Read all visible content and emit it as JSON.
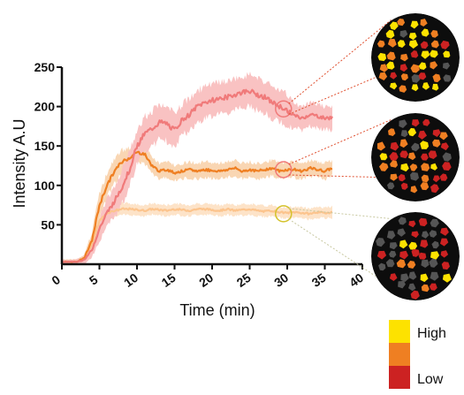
{
  "chart_data": {
    "type": "line",
    "xlabel": "Time (min)",
    "ylabel": "Intensity A.U",
    "xlim": [
      0,
      40
    ],
    "ylim": [
      0,
      250
    ],
    "x_ticks": [
      0,
      5,
      10,
      15,
      20,
      25,
      30,
      35,
      40
    ],
    "y_ticks": [
      50,
      100,
      150,
      200,
      250
    ],
    "series": [
      {
        "color": "#f07a7a",
        "band_color": "#f9c2c2",
        "x": [
          0,
          2,
          3,
          4,
          5,
          6,
          7,
          8,
          9,
          10,
          11,
          12,
          13,
          14,
          15,
          16,
          17,
          18,
          19,
          20,
          21,
          22,
          23,
          24,
          25,
          26,
          27,
          28,
          29,
          30,
          31,
          32,
          33,
          34,
          35,
          36
        ],
        "y": [
          3,
          3,
          6,
          18,
          45,
          65,
          80,
          98,
          120,
          150,
          165,
          172,
          180,
          178,
          170,
          183,
          190,
          200,
          205,
          208,
          210,
          212,
          215,
          218,
          220,
          215,
          212,
          205,
          200,
          195,
          188,
          185,
          190,
          188,
          185,
          186
        ],
        "band": [
          3,
          3,
          5,
          10,
          15,
          18,
          20,
          22,
          22,
          22,
          22,
          22,
          22,
          22,
          20,
          20,
          20,
          20,
          20,
          20,
          20,
          20,
          20,
          20,
          20,
          20,
          20,
          20,
          20,
          20,
          15,
          15,
          15,
          15,
          15,
          15
        ]
      },
      {
        "color": "#ef7f22",
        "band_color": "#f9d6b3",
        "x": [
          0,
          2,
          3,
          4,
          5,
          6,
          7,
          8,
          9,
          10,
          11,
          12,
          13,
          14,
          15,
          16,
          17,
          18,
          19,
          20,
          21,
          22,
          23,
          24,
          25,
          26,
          27,
          28,
          29,
          30,
          31,
          32,
          33,
          34,
          35,
          36
        ],
        "y": [
          3,
          3,
          8,
          30,
          75,
          100,
          118,
          130,
          135,
          142,
          140,
          125,
          118,
          120,
          116,
          118,
          120,
          118,
          120,
          119,
          118,
          120,
          122,
          118,
          120,
          118,
          120,
          122,
          118,
          120,
          120,
          118,
          122,
          120,
          118,
          122
        ],
        "band": [
          3,
          3,
          5,
          10,
          15,
          15,
          15,
          15,
          12,
          12,
          12,
          10,
          10,
          10,
          10,
          10,
          10,
          10,
          10,
          10,
          10,
          10,
          10,
          10,
          10,
          10,
          10,
          10,
          10,
          10,
          10,
          10,
          10,
          10,
          10,
          10
        ]
      },
      {
        "color": "#fcc48d",
        "band_color": "#fde3c8",
        "x": [
          0,
          2,
          3,
          4,
          5,
          6,
          7,
          8,
          9,
          10,
          11,
          12,
          13,
          14,
          15,
          16,
          17,
          18,
          19,
          20,
          21,
          22,
          23,
          24,
          25,
          26,
          27,
          28,
          29,
          30,
          31,
          32,
          33,
          34,
          35,
          36
        ],
        "y": [
          3,
          3,
          8,
          25,
          55,
          65,
          68,
          70,
          70,
          69,
          68,
          70,
          69,
          68,
          70,
          69,
          68,
          70,
          70,
          69,
          68,
          70,
          68,
          69,
          70,
          68,
          67,
          68,
          66,
          65,
          66,
          65,
          64,
          66,
          65,
          66
        ],
        "band": [
          3,
          3,
          4,
          6,
          8,
          8,
          8,
          8,
          7,
          7,
          7,
          7,
          7,
          7,
          7,
          7,
          7,
          7,
          7,
          7,
          7,
          7,
          7,
          7,
          7,
          7,
          7,
          7,
          7,
          7,
          7,
          7,
          7,
          7,
          7,
          7
        ]
      }
    ],
    "annotations": [
      {
        "x": 29.5,
        "y": 197,
        "color": "#f07a7a"
      },
      {
        "x": 29.5,
        "y": 120,
        "color": "#f07a7a"
      },
      {
        "x": 29.5,
        "y": 64,
        "color": "#d4c22a"
      }
    ],
    "legend": {
      "placement": "bottom-right",
      "items": [
        {
          "label": "High",
          "color": "#fde200"
        },
        {
          "label": "",
          "color": "#ef7f22"
        },
        {
          "label": "Low",
          "color": "#cc2222"
        }
      ]
    },
    "cell_image_colors": [
      "#fde200",
      "#ef7f22",
      "#cc2222",
      "#555555"
    ]
  }
}
